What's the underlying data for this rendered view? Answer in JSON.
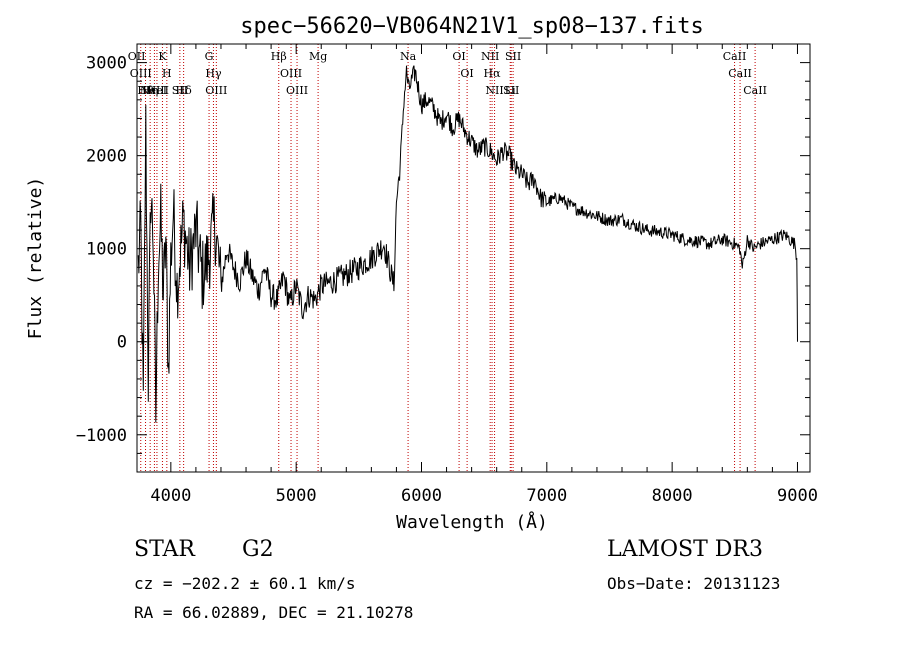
{
  "chart_data": {
    "type": "line",
    "title": "spec−56620−VB064N21V1_sp08−137.fits",
    "xlabel": "Wavelength (Å)",
    "ylabel": "Flux (relative)",
    "xlim": [
      3730,
      9100
    ],
    "ylim": [
      -1400,
      3200
    ],
    "xticks": [
      4000,
      5000,
      6000,
      7000,
      8000,
      9000
    ],
    "xtick_labels": [
      "4000",
      "5000",
      "6000",
      "7000",
      "8000",
      "9000"
    ],
    "yticks": [
      -1000,
      0,
      1000,
      2000,
      3000
    ],
    "ytick_labels": [
      "−1000",
      "0",
      "1000",
      "2000",
      "3000"
    ],
    "series": [
      {
        "name": "flux",
        "x": [
          3740,
          3760,
          3780,
          3800,
          3820,
          3840,
          3860,
          3880,
          3900,
          3920,
          3940,
          3960,
          3980,
          4000,
          4020,
          4050,
          4080,
          4100,
          4150,
          4200,
          4250,
          4300,
          4350,
          4400,
          4450,
          4500,
          4550,
          4600,
          4650,
          4700,
          4750,
          4800,
          4850,
          4900,
          4950,
          5000,
          5050,
          5100,
          5150,
          5200,
          5300,
          5400,
          5500,
          5600,
          5700,
          5780,
          5800,
          5830,
          5860,
          5880,
          5900,
          5920,
          5950,
          6000,
          6050,
          6100,
          6150,
          6200,
          6250,
          6300,
          6350,
          6400,
          6450,
          6500,
          6550,
          6600,
          6650,
          6700,
          6750,
          6800,
          6850,
          6900,
          6950,
          7000,
          7100,
          7200,
          7300,
          7400,
          7500,
          7600,
          7700,
          7800,
          7900,
          8000,
          8100,
          8200,
          8300,
          8400,
          8500,
          8540,
          8560,
          8600,
          8650,
          8700,
          8800,
          8900,
          8980,
          8995,
          9000
        ],
        "y": [
          800,
          1200,
          -700,
          2300,
          -400,
          1600,
          1100,
          -800,
          900,
          1300,
          500,
          1100,
          -300,
          900,
          1400,
          600,
          1000,
          1300,
          800,
          1200,
          700,
          900,
          1300,
          600,
          1000,
          800,
          650,
          900,
          700,
          550,
          800,
          500,
          450,
          700,
          400,
          600,
          350,
          500,
          450,
          600,
          650,
          720,
          800,
          900,
          1050,
          600,
          1500,
          1900,
          2600,
          2900,
          2700,
          2800,
          2900,
          2550,
          2600,
          2500,
          2350,
          2450,
          2300,
          2400,
          2250,
          2150,
          2050,
          2100,
          2050,
          1950,
          2050,
          2000,
          1850,
          1800,
          1700,
          1750,
          1550,
          1500,
          1550,
          1450,
          1400,
          1350,
          1300,
          1320,
          1250,
          1200,
          1180,
          1150,
          1100,
          1080,
          1050,
          1100,
          1050,
          1000,
          800,
          1100,
          1000,
          1050,
          1100,
          1150,
          1050,
          900,
          0
        ]
      }
    ],
    "lines": [
      {
        "x": 3727,
        "label": "OII"
      },
      {
        "x": 3760,
        "label": "OIII"
      },
      {
        "x": 3798,
        "label": "Hθ"
      },
      {
        "x": 3835,
        "label": "Hη"
      },
      {
        "x": 3869,
        "label": "NeIII"
      },
      {
        "x": 3889,
        "label": "HeI"
      },
      {
        "x": 3933,
        "label": "K"
      },
      {
        "x": 3968,
        "label": "H"
      },
      {
        "x": 4072,
        "label": "SII"
      },
      {
        "x": 4102,
        "label": "Hδ"
      },
      {
        "x": 4305,
        "label": "G"
      },
      {
        "x": 4340,
        "label": "Hγ"
      },
      {
        "x": 4363,
        "label": "OIII"
      },
      {
        "x": 4861,
        "label": "Hβ"
      },
      {
        "x": 4959,
        "label": "OIII"
      },
      {
        "x": 5007,
        "label": "OIII"
      },
      {
        "x": 5175,
        "label": "Mg"
      },
      {
        "x": 5893,
        "label": "Na"
      },
      {
        "x": 6300,
        "label": "OI"
      },
      {
        "x": 6364,
        "label": "OI"
      },
      {
        "x": 6548,
        "label": "NII"
      },
      {
        "x": 6563,
        "label": "Hα"
      },
      {
        "x": 6583,
        "label": "NII"
      },
      {
        "x": 6708,
        "label": "Li"
      },
      {
        "x": 6716,
        "label": "SII"
      },
      {
        "x": 6731,
        "label": "SII"
      },
      {
        "x": 8498,
        "label": "CaII"
      },
      {
        "x": 8542,
        "label": "CaII"
      },
      {
        "x": 8662,
        "label": "CaII"
      }
    ],
    "colors": {
      "spectrum": "#000000",
      "lines": "#c00000",
      "axes": "#000000"
    }
  },
  "info": {
    "object_class": "STAR",
    "subclass": "G2",
    "survey": "LAMOST DR3",
    "cz": "cz = −202.2 ± 60.1 km/s",
    "obs_date": "Obs−Date: 20131123",
    "coords": "RA =  66.02889, DEC =  21.10278"
  }
}
